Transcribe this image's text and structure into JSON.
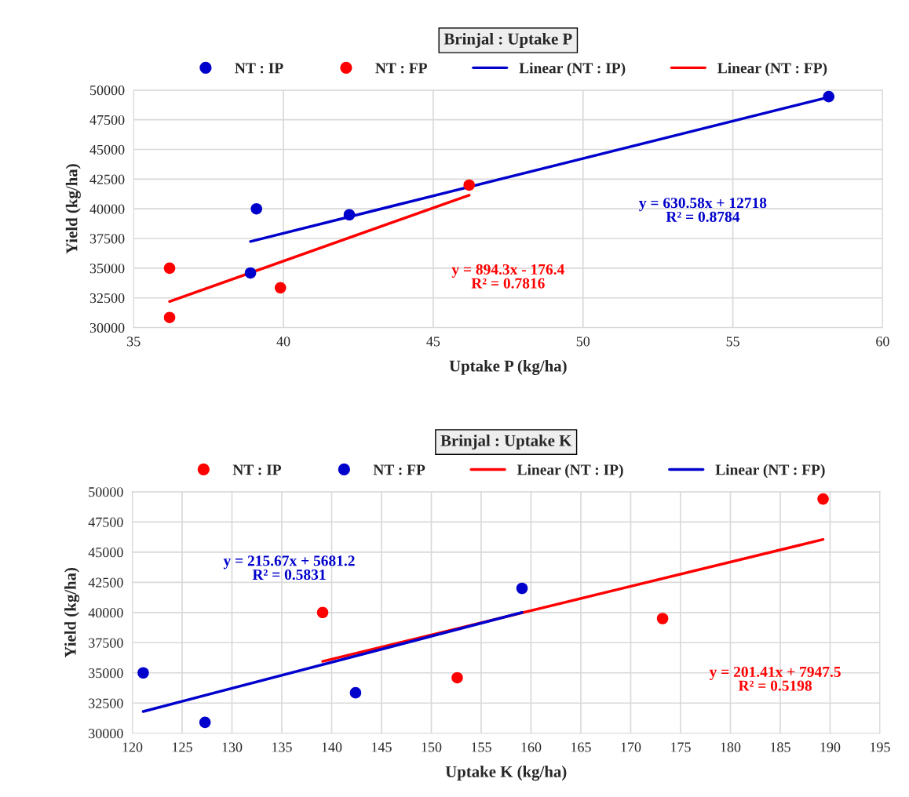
{
  "chart_data": [
    {
      "type": "scatter",
      "title": "Brinjal : Uptake P",
      "xlabel": "Uptake P (kg/ha)",
      "ylabel": "Yield (kg/ha)",
      "xlim": [
        35,
        60
      ],
      "xticks": [
        35,
        40,
        45,
        50,
        55,
        60
      ],
      "ylim": [
        30000,
        50000
      ],
      "yticks": [
        30000,
        32500,
        35000,
        37500,
        40000,
        42500,
        45000,
        47500,
        50000
      ],
      "grid": true,
      "legend": "top",
      "series": [
        {
          "name": "NT : IP",
          "marker": "circle",
          "color": "#0000cc",
          "x": [
            38.9,
            39.1,
            42.2,
            58.2
          ],
          "values": [
            34600,
            40000,
            39500,
            49450
          ]
        },
        {
          "name": "NT : FP",
          "marker": "circle",
          "color": "#ff0000",
          "x": [
            36.2,
            36.2,
            39.9,
            46.2
          ],
          "values": [
            35000,
            30850,
            33350,
            42000
          ]
        },
        {
          "name": "Linear (NT : IP)",
          "type": "line",
          "color": "#0000cc",
          "x": [
            38.9,
            58.2
          ],
          "values": [
            37250,
            49400
          ]
        },
        {
          "name": "Linear (NT : FP)",
          "type": "line",
          "color": "#ff0000",
          "x": [
            36.2,
            46.2
          ],
          "values": [
            32200,
            41150
          ]
        }
      ],
      "annotations": [
        "y = 630.58x + 12718\nR² = 0.8784",
        "y = 894.3x - 176.4\nR² = 0.7816"
      ]
    },
    {
      "type": "scatter",
      "title": "Brinjal : Uptake K",
      "xlabel": "Uptake K (kg/ha)",
      "ylabel": "Yield (kg/ha)",
      "xlim": [
        120,
        195
      ],
      "xticks": [
        120,
        125,
        130,
        135,
        140,
        145,
        150,
        155,
        160,
        165,
        170,
        175,
        180,
        185,
        190,
        195
      ],
      "ylim": [
        30000,
        50000
      ],
      "yticks": [
        30000,
        32500,
        35000,
        37500,
        40000,
        42500,
        45000,
        47500,
        50000
      ],
      "grid": true,
      "legend": "top",
      "series": [
        {
          "name": "NT : IP",
          "marker": "circle",
          "color": "#ff0000",
          "x": [
            139.1,
            152.6,
            173.2,
            189.3
          ],
          "values": [
            40000,
            34600,
            39500,
            49400
          ]
        },
        {
          "name": "NT : FP",
          "marker": "circle",
          "color": "#0000cc",
          "x": [
            121.1,
            127.3,
            142.4,
            159.1
          ],
          "values": [
            35000,
            30900,
            33350,
            42000
          ]
        },
        {
          "name": "Linear (NT : IP)",
          "type": "line",
          "color": "#ff0000",
          "x": [
            139.1,
            189.3
          ],
          "values": [
            35950,
            46050
          ]
        },
        {
          "name": "Linear (NT : FP)",
          "type": "line",
          "color": "#0000cc",
          "x": [
            121.1,
            159.1
          ],
          "values": [
            31800,
            40000
          ]
        }
      ],
      "annotations": [
        "y = 201.41x + 7947.5\nR² = 0.5198",
        "y = 215.67x + 5681.2\nR² = 0.5831"
      ]
    }
  ]
}
